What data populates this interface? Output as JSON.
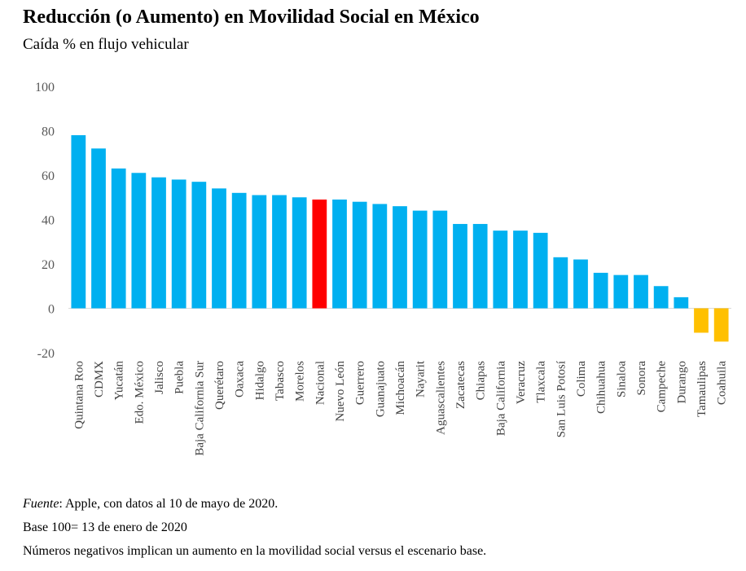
{
  "title": "Reducción (o Aumento) en Movilidad Social en México",
  "subtitle": "Caída % en flujo vehicular",
  "notes": {
    "source_label": "Fuente",
    "source_text": ": Apple, con datos al 10 de mayo de 2020.",
    "base": "Base 100= 13 de enero de 2020",
    "negative": "Números negativos implican un aumento en la movilidad social versus el escenario base."
  },
  "colors": {
    "default": "#00B0F0",
    "highlight": "#FF0000",
    "negative": "#FFC000"
  },
  "chart_data": {
    "type": "bar",
    "title": "Reducción (o Aumento) en Movilidad Social en México",
    "subtitle": "Caída % en flujo vehicular",
    "xlabel": "",
    "ylabel": "",
    "ylim": [
      -20,
      100
    ],
    "yticks": [
      100,
      80,
      60,
      40,
      20,
      0,
      -20
    ],
    "grid": false,
    "highlight": "Nacional",
    "categories": [
      "Quintana Roo",
      "CDMX",
      "Yucatán",
      "Edo. México",
      "Jalisco",
      "Puebla",
      "Baja California Sur",
      "Querétaro",
      "Oaxaca",
      "Hidalgo",
      "Tabasco",
      "Morelos",
      "Nacional",
      "Nuevo León",
      "Guerrero",
      "Guanajuato",
      "Michoacán",
      "Nayarit",
      "Aguascalientes",
      "Zacatecas",
      "Chiapas",
      "Baja California",
      "Veracruz",
      "Tlaxcala",
      "San Luis Potosí",
      "Colima",
      "Chihuahua",
      "Sinaloa",
      "Sonora",
      "Campeche",
      "Durango",
      "Tamaulipas",
      "Coahuila"
    ],
    "values": [
      78,
      72,
      63,
      61,
      59,
      58,
      57,
      54,
      52,
      51,
      51,
      50,
      49,
      49,
      48,
      47,
      46,
      44,
      44,
      38,
      38,
      35,
      35,
      34,
      23,
      22,
      16,
      15,
      15,
      10,
      5,
      -11,
      -15
    ]
  }
}
